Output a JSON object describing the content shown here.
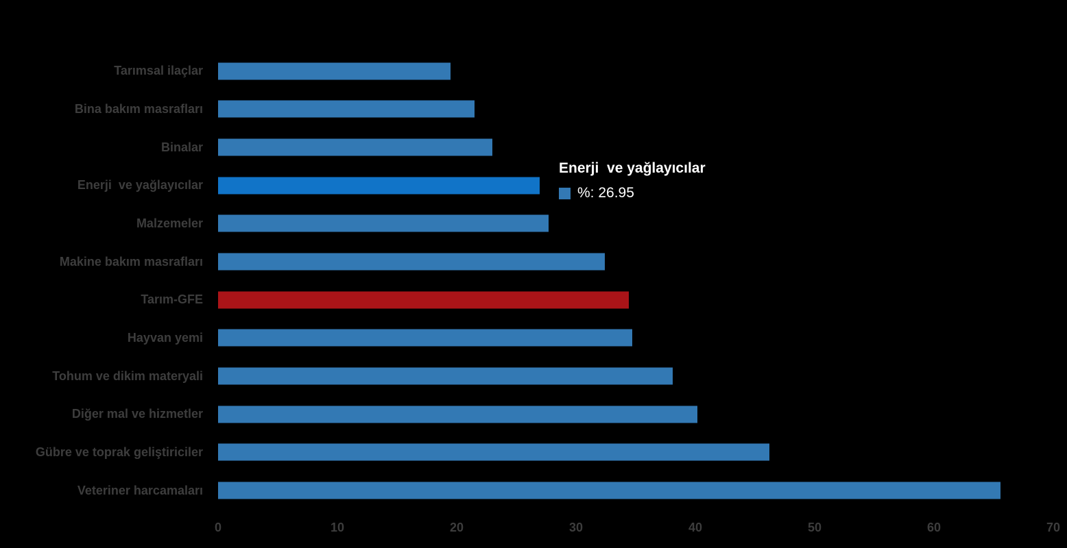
{
  "chart_data": {
    "type": "bar",
    "orientation": "horizontal",
    "title": "",
    "xlabel": "",
    "ylabel": "",
    "xlim": [
      0,
      70
    ],
    "x_ticks": [
      0,
      10,
      20,
      30,
      40,
      50,
      60,
      70
    ],
    "grid": false,
    "legend_position": "none",
    "categories": [
      "Tarımsal ilaçlar",
      "Bina bakım masrafları",
      "Binalar",
      "Enerji  ve yağlayıcılar",
      "Malzemeler",
      "Makine bakım masrafları",
      "Tarım-GFE",
      "Hayvan yemi",
      "Tohum ve dikim materyali",
      "Diğer mal ve hizmetler",
      "Gübre ve toprak geliştiriciler",
      "Veteriner harcamaları"
    ],
    "values": [
      19.5,
      21.5,
      23.0,
      26.95,
      27.7,
      32.4,
      34.4,
      34.7,
      38.1,
      40.2,
      46.2,
      65.6
    ],
    "bar_roles": [
      "normal",
      "normal",
      "normal",
      "highlight",
      "normal",
      "normal",
      "emphasis",
      "normal",
      "normal",
      "normal",
      "normal",
      "normal"
    ],
    "unit": "%"
  },
  "colors": {
    "background": "#000000",
    "bar_normal": "#3379b4",
    "bar_highlight": "#1174c8",
    "bar_emphasis": "#ab1418",
    "label_text": "#3d3d3d",
    "tick_text": "#3d3d3d",
    "tooltip_text": "#ffffff",
    "tooltip_swatch": "#3379b4"
  },
  "tooltip": {
    "title": "Enerji  ve yağlayıcılar",
    "value_label": "%: 26.95"
  }
}
